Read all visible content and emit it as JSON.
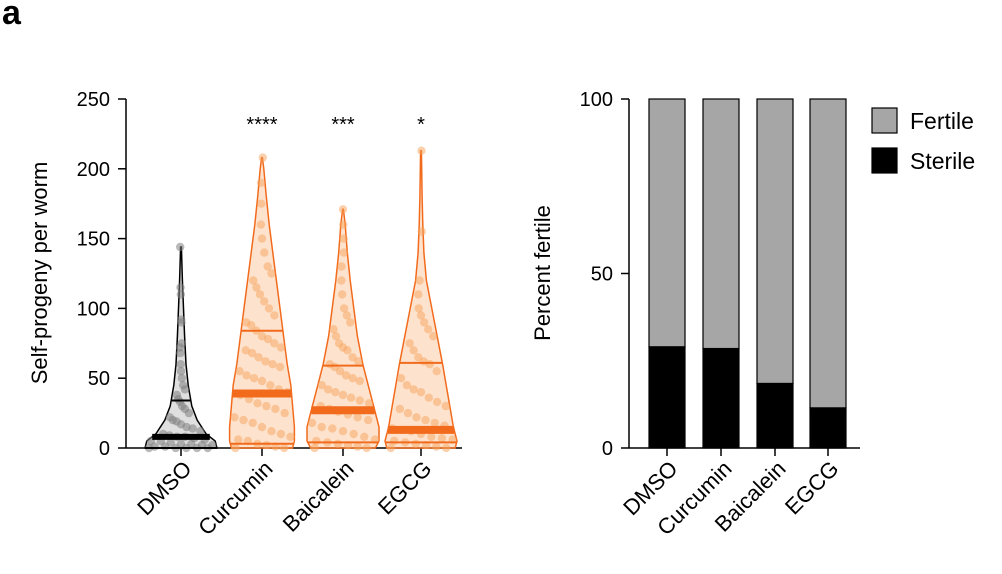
{
  "panel_label": "a",
  "chart_data": [
    {
      "type": "violin",
      "ylabel": "Self-progeny per worm",
      "ylim": [
        0,
        250
      ],
      "yticks": [
        0,
        50,
        100,
        150,
        200,
        250
      ],
      "categories": [
        "DMSO",
        "Curcumin",
        "Baicalein",
        "EGCG"
      ],
      "significance": [
        "",
        "****",
        "***",
        "*"
      ],
      "colors": {
        "DMSO": "#808080",
        "Curcumin": "#f7a35c",
        "Baicalein": "#f7a35c",
        "EGCG": "#f7a35c",
        "treatment_line": "#f26b1d",
        "dmso_line": "#000000"
      },
      "groups": [
        {
          "name": "DMSO",
          "max": 144,
          "median": 8,
          "q1": 0,
          "q3": 34,
          "profile": [
            [
              0,
              1
            ],
            [
              5,
              0.95
            ],
            [
              10,
              0.7
            ],
            [
              20,
              0.45
            ],
            [
              30,
              0.3
            ],
            [
              45,
              0.2
            ],
            [
              60,
              0.14
            ],
            [
              80,
              0.1
            ],
            [
              100,
              0.07
            ],
            [
              120,
              0.04
            ],
            [
              144,
              0.01
            ]
          ],
          "points": [
            0,
            0,
            0,
            0,
            0,
            1,
            1,
            2,
            2,
            3,
            3,
            4,
            5,
            5,
            6,
            7,
            8,
            8,
            9,
            10,
            12,
            14,
            15,
            17,
            19,
            20,
            22,
            25,
            28,
            30,
            33,
            35,
            38,
            42,
            45,
            50,
            55,
            60,
            68,
            72,
            75,
            90,
            92,
            110,
            115,
            144
          ]
        },
        {
          "name": "Curcumin",
          "max": 208,
          "median": 39,
          "q1": 3,
          "q3": 84,
          "profile": [
            [
              0,
              0.85
            ],
            [
              5,
              0.9
            ],
            [
              15,
              0.9
            ],
            [
              30,
              0.85
            ],
            [
              45,
              0.8
            ],
            [
              60,
              0.7
            ],
            [
              80,
              0.6
            ],
            [
              100,
              0.5
            ],
            [
              120,
              0.4
            ],
            [
              140,
              0.3
            ],
            [
              160,
              0.2
            ],
            [
              180,
              0.12
            ],
            [
              200,
              0.05
            ],
            [
              208,
              0.01
            ]
          ],
          "points": [
            0,
            0,
            1,
            2,
            3,
            5,
            6,
            8,
            10,
            12,
            15,
            18,
            20,
            22,
            25,
            28,
            30,
            32,
            35,
            38,
            40,
            42,
            45,
            48,
            50,
            52,
            55,
            58,
            60,
            62,
            65,
            68,
            70,
            72,
            75,
            78,
            80,
            84,
            88,
            90,
            95,
            100,
            105,
            110,
            115,
            120,
            125,
            130,
            140,
            150,
            160,
            175,
            190,
            208
          ]
        },
        {
          "name": "Baicalein",
          "max": 171,
          "median": 27,
          "q1": 4,
          "q3": 59,
          "profile": [
            [
              0,
              0.9
            ],
            [
              5,
              1
            ],
            [
              15,
              1
            ],
            [
              30,
              0.85
            ],
            [
              45,
              0.7
            ],
            [
              60,
              0.55
            ],
            [
              80,
              0.4
            ],
            [
              100,
              0.3
            ],
            [
              120,
              0.2
            ],
            [
              140,
              0.12
            ],
            [
              160,
              0.06
            ],
            [
              171,
              0.01
            ]
          ],
          "points": [
            0,
            0,
            1,
            2,
            3,
            4,
            5,
            6,
            8,
            10,
            12,
            14,
            15,
            18,
            20,
            22,
            24,
            26,
            28,
            30,
            32,
            34,
            36,
            38,
            40,
            42,
            45,
            48,
            50,
            52,
            55,
            58,
            60,
            62,
            65,
            70,
            72,
            75,
            80,
            85,
            90,
            95,
            100,
            110,
            120,
            130,
            140,
            150,
            160,
            171
          ]
        },
        {
          "name": "EGCG",
          "max": 213,
          "median": 13,
          "q1": 4,
          "q3": 61,
          "profile": [
            [
              0,
              0.95
            ],
            [
              5,
              1
            ],
            [
              15,
              0.9
            ],
            [
              30,
              0.8
            ],
            [
              45,
              0.7
            ],
            [
              60,
              0.6
            ],
            [
              80,
              0.45
            ],
            [
              100,
              0.3
            ],
            [
              120,
              0.15
            ],
            [
              140,
              0.08
            ],
            [
              160,
              0.05
            ],
            [
              180,
              0.03
            ],
            [
              213,
              0.01
            ]
          ],
          "points": [
            0,
            0,
            1,
            2,
            3,
            4,
            5,
            6,
            7,
            8,
            10,
            12,
            13,
            14,
            16,
            18,
            20,
            22,
            25,
            28,
            30,
            33,
            36,
            40,
            42,
            45,
            50,
            55,
            60,
            62,
            65,
            70,
            75,
            80,
            85,
            90,
            95,
            100,
            110,
            120,
            155,
            213
          ]
        }
      ]
    },
    {
      "type": "stacked-bar",
      "ylabel": "Percent fertile",
      "ylim": [
        0,
        100
      ],
      "yticks": [
        0,
        50,
        100
      ],
      "categories": [
        "DMSO",
        "Curcumin",
        "Baicalein",
        "EGCG"
      ],
      "series": [
        {
          "name": "Sterile",
          "color": "#000000",
          "values": [
            29,
            28.5,
            18.5,
            11.5
          ]
        },
        {
          "name": "Fertile",
          "color": "#a6a6a6",
          "values": [
            71,
            71.5,
            81.5,
            88.5
          ]
        }
      ],
      "legend": [
        {
          "label": "Fertile",
          "color": "#a6a6a6"
        },
        {
          "label": "Sterile",
          "color": "#000000"
        }
      ],
      "legend_position": "top-right"
    }
  ]
}
